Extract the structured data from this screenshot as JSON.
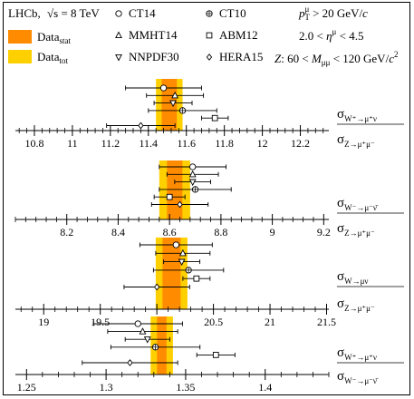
{
  "header": {
    "experiment": "LHCb,",
    "energy": "√s = 8 TeV",
    "data_stat": "Data",
    "data_stat_sub": "stat",
    "data_tot": "Data",
    "data_tot_sub": "tot",
    "pdf_sets": [
      {
        "name": "CT14",
        "marker": "circle"
      },
      {
        "name": "MMHT14",
        "marker": "triangle-up"
      },
      {
        "name": "NNPDF30",
        "marker": "triangle-down"
      },
      {
        "name": "CT10",
        "marker": "circle-cross"
      },
      {
        "name": "ABM12",
        "marker": "square"
      },
      {
        "name": "HERA15",
        "marker": "diamond"
      }
    ],
    "cut_pt": "p_T^μ > 20 GeV/c",
    "cut_eta": "2.0 < η^μ < 4.5",
    "cut_z": "Z: 60 < M_μμ < 120 GeV/c²"
  },
  "colors": {
    "stat": "#ff8c00",
    "tot": "#ffd000"
  },
  "chart_data": [
    {
      "type": "scatter",
      "ratio_label": "σ(W⁺→μ⁺ν) / σ(Z→μ⁺μ⁻)",
      "xlim": [
        10.7,
        12.35
      ],
      "ticks": [
        "10.8",
        "11",
        "11.2",
        "11.4",
        "11.6",
        "11.8",
        "12",
        "12.2"
      ],
      "data": {
        "value": 11.51,
        "stat": 0.04,
        "tot": 0.07
      },
      "points": [
        {
          "pdf": "CT14",
          "marker": "circle",
          "value": 11.48,
          "err": 0.2
        },
        {
          "pdf": "MMHT14",
          "marker": "triangle-up",
          "value": 11.54,
          "err": 0.15
        },
        {
          "pdf": "NNPDF30",
          "marker": "triangle-down",
          "value": 11.53,
          "err": 0.1
        },
        {
          "pdf": "CT10",
          "marker": "circle-cross",
          "value": 11.58,
          "err": 0.18
        },
        {
          "pdf": "ABM12",
          "marker": "square",
          "value": 11.75,
          "err": 0.07
        },
        {
          "pdf": "HERA15",
          "marker": "diamond",
          "value": 11.36,
          "err": 0.18
        }
      ]
    },
    {
      "type": "scatter",
      "ratio_label": "σ(W⁻→μ⁻ν̄) / σ(Z→μ⁺μ⁻)",
      "xlim": [
        8.0,
        9.22
      ],
      "ticks": [
        "8.2",
        "8.4",
        "8.6",
        "8.8",
        "9",
        "9.2"
      ],
      "data": {
        "value": 8.62,
        "stat": 0.03,
        "tot": 0.06
      },
      "points": [
        {
          "pdf": "CT14",
          "marker": "circle",
          "value": 8.69,
          "err": 0.13
        },
        {
          "pdf": "MMHT14",
          "marker": "triangle-up",
          "value": 8.69,
          "err": 0.1
        },
        {
          "pdf": "NNPDF30",
          "marker": "triangle-down",
          "value": 8.69,
          "err": 0.07
        },
        {
          "pdf": "CT10",
          "marker": "circle-cross",
          "value": 8.7,
          "err": 0.14
        },
        {
          "pdf": "ABM12",
          "marker": "square",
          "value": 8.6,
          "err": 0.06
        },
        {
          "pdf": "HERA15",
          "marker": "diamond",
          "value": 8.64,
          "err": 0.11
        }
      ]
    },
    {
      "type": "scatter",
      "ratio_label": "σ(W→μν) / σ(Z→μ⁺μ⁻)",
      "xlim": [
        18.75,
        21.52
      ],
      "ticks": [
        "19",
        "19.5",
        "20",
        "20.5",
        "21",
        "21.5"
      ],
      "data": {
        "value": 20.13,
        "stat": 0.08,
        "tot": 0.14
      },
      "points": [
        {
          "pdf": "CT14",
          "marker": "circle",
          "value": 20.17,
          "err": 0.32
        },
        {
          "pdf": "MMHT14",
          "marker": "triangle-up",
          "value": 20.23,
          "err": 0.24
        },
        {
          "pdf": "NNPDF30",
          "marker": "triangle-down",
          "value": 20.22,
          "err": 0.16
        },
        {
          "pdf": "CT10",
          "marker": "circle-cross",
          "value": 20.28,
          "err": 0.31
        },
        {
          "pdf": "ABM12",
          "marker": "square",
          "value": 20.35,
          "err": 0.12
        },
        {
          "pdf": "HERA15",
          "marker": "diamond",
          "value": 20.0,
          "err": 0.29
        }
      ]
    },
    {
      "type": "scatter",
      "ratio_label": "σ(W⁺→μ⁺ν) / σ(W⁻→μ⁻ν̄)",
      "xlim": [
        1.243,
        1.44
      ],
      "ticks": [
        "1.25",
        "1.3",
        "1.35",
        "1.4"
      ],
      "data": {
        "value": 1.335,
        "stat": 0.003,
        "tot": 0.007
      },
      "points": [
        {
          "pdf": "CT14",
          "marker": "circle",
          "value": 1.32,
          "err": 0.028
        },
        {
          "pdf": "MMHT14",
          "marker": "triangle-up",
          "value": 1.323,
          "err": 0.022
        },
        {
          "pdf": "NNPDF30",
          "marker": "triangle-down",
          "value": 1.326,
          "err": 0.014
        },
        {
          "pdf": "CT10",
          "marker": "circle-cross",
          "value": 1.331,
          "err": 0.028
        },
        {
          "pdf": "ABM12",
          "marker": "square",
          "value": 1.369,
          "err": 0.012
        },
        {
          "pdf": "HERA15",
          "marker": "diamond",
          "value": 1.315,
          "err": 0.03
        }
      ]
    }
  ]
}
